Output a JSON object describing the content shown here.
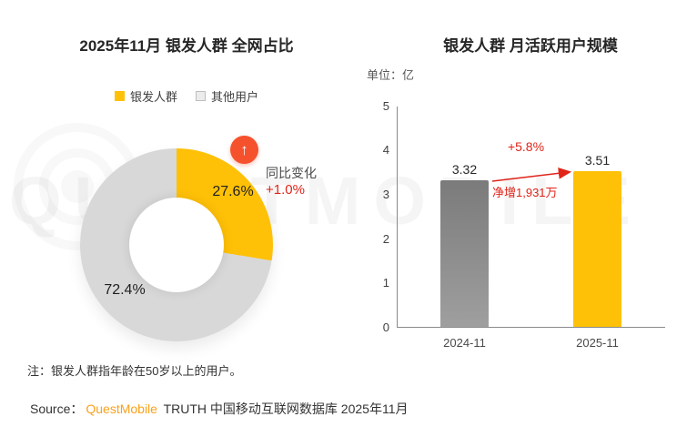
{
  "watermark": {
    "text": "QUESTMOBILE"
  },
  "chart_data": [
    {
      "type": "pie",
      "donut": true,
      "title": "2025年11月 银发人群 全网占比",
      "legend": [
        "银发人群",
        "其他用户"
      ],
      "categories": [
        "银发人群",
        "其他用户"
      ],
      "values": [
        27.6,
        72.4
      ],
      "value_labels": [
        "27.6%",
        "72.4%"
      ],
      "colors": [
        "#FFC107",
        "#D8D8D8"
      ],
      "annotation": {
        "icon": "up-arrow-icon",
        "label": "同比变化",
        "value": "+1.0%"
      }
    },
    {
      "type": "bar",
      "title": "银发人群 月活跃用户规模",
      "unit_label": "单位：亿",
      "categories": [
        "2024-11",
        "2025-11"
      ],
      "values": [
        3.32,
        3.51
      ],
      "value_labels": [
        "3.32",
        "3.51"
      ],
      "colors": [
        "#8F8F8F",
        "#FFC107"
      ],
      "ylim": [
        0,
        5
      ],
      "yticks": [
        "5",
        "4",
        "3",
        "2",
        "1",
        "0"
      ],
      "grid": false,
      "annotations": {
        "growth_pct": "+5.8%",
        "net_increase": "净增1,931万"
      }
    }
  ],
  "footer": {
    "note": "注：银发人群指年龄在50岁以上的用户。",
    "source_prefix": "Source：",
    "source_brand": "QuestMobile",
    "source_suffix": " TRUTH 中国移动互联网数据库 2025年11月"
  },
  "colors": {
    "accent_yellow": "#FFC107",
    "donut_gray": "#D8D8D8",
    "bar_gray": "#8F8F8F",
    "accent_red": "#E02419",
    "badge_orange": "#F5512D",
    "brand_orange": "#F9A11B"
  },
  "icons": {
    "up_arrow": "↑"
  }
}
